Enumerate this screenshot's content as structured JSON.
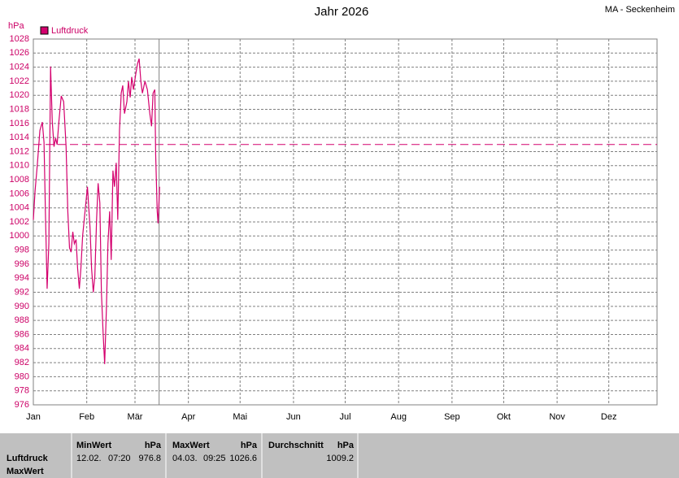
{
  "chart_data": {
    "type": "line",
    "title": "Jahr 2026",
    "station": "MA - Seckenheim",
    "y_label": "hPa",
    "xlim": [
      0,
      362
    ],
    "xticks": [
      {
        "value": 0,
        "label": "Jan"
      },
      {
        "value": 31,
        "label": "Feb"
      },
      {
        "value": 59,
        "label": "Mär"
      },
      {
        "value": 90,
        "label": "Apr"
      },
      {
        "value": 120,
        "label": "Mai"
      },
      {
        "value": 151,
        "label": "Jun"
      },
      {
        "value": 181,
        "label": "Jul"
      },
      {
        "value": 212,
        "label": "Aug"
      },
      {
        "value": 243,
        "label": "Sep"
      },
      {
        "value": 273,
        "label": "Okt"
      },
      {
        "value": 304,
        "label": "Nov"
      },
      {
        "value": 334,
        "label": "Dez"
      }
    ],
    "ylim": [
      976,
      1028
    ],
    "yticks": [
      976,
      978,
      980,
      982,
      984,
      986,
      988,
      990,
      992,
      994,
      996,
      998,
      1000,
      1002,
      1004,
      1006,
      1008,
      1010,
      1012,
      1014,
      1016,
      1018,
      1020,
      1022,
      1024,
      1026,
      1028
    ],
    "grid": true,
    "reference_line": 1013,
    "marker_x": 73,
    "series": [
      {
        "name": "Luftdruck",
        "color": "#d4006e",
        "x": [
          0,
          1,
          2.4,
          3.8,
          5.2,
          6.2,
          7,
          8,
          9,
          10,
          11,
          12,
          12.9,
          13.8,
          14.8,
          16.2,
          17.6,
          19,
          20,
          21,
          21.9,
          22.9,
          23.8,
          24.8,
          25.7,
          26.7,
          27.6,
          28.6,
          30,
          31.4,
          32.9,
          33.8,
          34.8,
          35.7,
          36.7,
          37.6,
          38.6,
          39.5,
          40.5,
          41.4,
          42.4,
          43.3,
          44.3,
          45.2,
          46.2,
          47.1,
          48.1,
          49,
          50,
          51,
          51.9,
          52.9,
          54.3,
          55.2,
          56.2,
          57.1,
          58.1,
          59.5,
          60.5,
          61.4,
          62.4,
          63.3,
          64.8,
          66.2,
          67.6,
          68.6,
          69.5,
          70.5,
          71,
          71.9,
          72.4,
          73.3
        ],
        "values": [
          1002.3,
          1006.4,
          1010.4,
          1015,
          1016.2,
          1013.3,
          1003.5,
          992.5,
          998.9,
          1024.1,
          1016.2,
          1012.7,
          1013.9,
          1013,
          1016.2,
          1019.9,
          1019.1,
          1012.7,
          1003.5,
          998.3,
          997.7,
          1000.6,
          998.9,
          999.5,
          995.4,
          992.5,
          995.4,
          1000,
          1003.5,
          1007,
          1001.2,
          995.4,
          992,
          994.3,
          1002.3,
          1007.5,
          1004.7,
          992,
          986.2,
          981.8,
          989.6,
          998.9,
          1003.5,
          996.6,
          1009.3,
          1007,
          1010.4,
          1002.3,
          1015,
          1020.3,
          1021.4,
          1017.4,
          1019.1,
          1022,
          1019.7,
          1022.6,
          1020.8,
          1023.1,
          1024.5,
          1025.2,
          1022,
          1020.3,
          1022,
          1020.8,
          1017.4,
          1015.6,
          1020.3,
          1020.8,
          1011.6,
          1003.5,
          1001.8,
          1007
        ]
      }
    ]
  },
  "summary": {
    "row_labels": [
      "Luftdruck",
      "MaxWert"
    ],
    "columns": [
      {
        "header": "MinWert",
        "unit": "hPa",
        "date": "12.02.",
        "time": "07:20",
        "value": 976.8
      },
      {
        "header": "MaxWert",
        "unit": "hPa",
        "date": "04.03.",
        "time": "09:25",
        "value": 1026.6
      },
      {
        "header": "Durchschnitt",
        "unit": "hPa",
        "value": 1009.2
      }
    ]
  }
}
